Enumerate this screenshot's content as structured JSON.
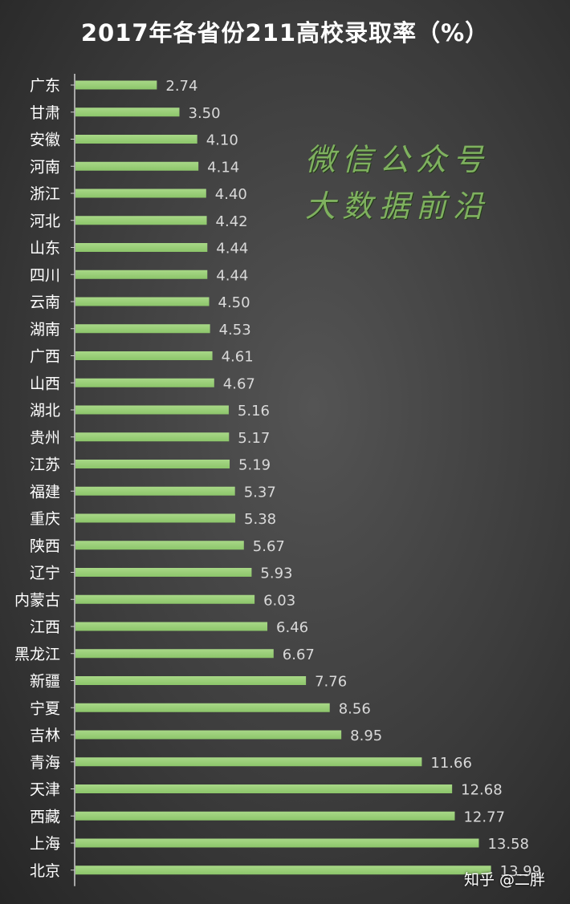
{
  "colors": {
    "bar": "#8cc56a",
    "bar_highlight": "#a8d887",
    "label": "#ffffff",
    "value": "#d9d9d9",
    "axis": "#cfcfcf"
  },
  "watermark": {
    "line1": "微信公众号",
    "line2": "大数据前沿"
  },
  "credit": "知乎 @二胖",
  "chart_data": {
    "type": "bar",
    "orientation": "horizontal",
    "title": "2017年各省份211高校录取率（%）",
    "xlabel": "",
    "ylabel": "",
    "xlim": [
      0,
      14.5
    ],
    "grid": false,
    "legend": "none",
    "categories": [
      "广东",
      "甘肃",
      "安徽",
      "河南",
      "浙江",
      "河北",
      "山东",
      "四川",
      "云南",
      "湖南",
      "广西",
      "山西",
      "湖北",
      "贵州",
      "江苏",
      "福建",
      "重庆",
      "陕西",
      "辽宁",
      "内蒙古",
      "江西",
      "黑龙江",
      "新疆",
      "宁夏",
      "吉林",
      "青海",
      "天津",
      "西藏",
      "上海",
      "北京"
    ],
    "value_labels": [
      "2.74",
      "3.50",
      "4.10",
      "4.14",
      "4.40",
      "4.42",
      "4.44",
      "4.44",
      "4.50",
      "4.53",
      "4.61",
      "4.67",
      "5.16",
      "5.17",
      "5.19",
      "5.37",
      "5.38",
      "5.67",
      "5.93",
      "6.03",
      "6.46",
      "6.67",
      "7.76",
      "8.56",
      "8.95",
      "11.66",
      "12.68",
      "12.77",
      "13.58",
      "13.99"
    ],
    "values": [
      2.74,
      3.5,
      4.1,
      4.14,
      4.4,
      4.42,
      4.44,
      4.44,
      4.5,
      4.53,
      4.61,
      4.67,
      5.16,
      5.17,
      5.19,
      5.37,
      5.38,
      5.67,
      5.93,
      6.03,
      6.46,
      6.67,
      7.76,
      8.56,
      8.95,
      11.66,
      12.68,
      12.77,
      13.58,
      13.99
    ]
  }
}
